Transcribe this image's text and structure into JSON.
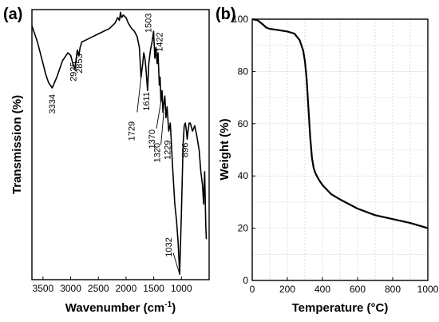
{
  "chart_data": [
    {
      "type": "line",
      "panel_label": "(a)",
      "xlabel": "Wavenumber (cm",
      "xlabel_sup": "-1",
      "xlabel_end": ")",
      "ylabel": "Transmission (%)",
      "xlim": [
        3700,
        500
      ],
      "x_reversed": true,
      "x_ticks": [
        3500,
        3000,
        2500,
        2000,
        1500,
        1000
      ],
      "y_ticks_shown": false,
      "y_scale": "arbitrary transmission, 0 = bottom of frame, 100 = top of frame",
      "series": [
        {
          "x": [
            3700,
            3600,
            3500,
            3450,
            3400,
            3334,
            3250,
            3150,
            3050,
            3000,
            2960,
            2925,
            2900,
            2880,
            2853,
            2830,
            2800,
            2700,
            2600,
            2500,
            2400,
            2300,
            2200,
            2150,
            2120,
            2100,
            2080,
            2050,
            2000,
            1960,
            1900,
            1850,
            1800,
            1760,
            1729,
            1700,
            1680,
            1660,
            1640,
            1611,
            1590,
            1560,
            1530,
            1503,
            1480,
            1460,
            1440,
            1422,
            1400,
            1385,
            1370,
            1350,
            1335,
            1320,
            1300,
            1280,
            1260,
            1229,
            1200,
            1160,
            1120,
            1090,
            1060,
            1032,
            1000,
            970,
            950,
            930,
            910,
            896,
            880,
            860,
            840,
            800,
            760,
            720,
            680,
            650,
            620,
            600,
            580,
            560,
            550
          ],
          "y": [
            94,
            88,
            80,
            76,
            73,
            71,
            75,
            81,
            84,
            83,
            80,
            78,
            82,
            85,
            83,
            86,
            88,
            89,
            90,
            91,
            92,
            93,
            95,
            97,
            96,
            99,
            97,
            98,
            97,
            95,
            93,
            92,
            90,
            86,
            75,
            80,
            84,
            82,
            78,
            70,
            80,
            85,
            88,
            92,
            82,
            86,
            80,
            84,
            72,
            75,
            66,
            70,
            62,
            65,
            68,
            60,
            64,
            55,
            58,
            42,
            28,
            22,
            14,
            2,
            25,
            50,
            57,
            58,
            55,
            52,
            55,
            58,
            58,
            55,
            57,
            53,
            48,
            40,
            35,
            28,
            40,
            20,
            15
          ],
          "annotations": [
            "3334",
            "2925",
            "2853",
            "1729",
            "1611",
            "1503",
            "1422",
            "1370",
            "1320",
            "1229",
            "1032",
            "896"
          ]
        }
      ]
    },
    {
      "type": "line",
      "panel_label": "(b)",
      "xlabel": "Temperature (°C)",
      "ylabel": "Weight (%)",
      "xlim": [
        0,
        1000
      ],
      "ylim": [
        0,
        100
      ],
      "x_ticks": [
        "0",
        "200",
        "400",
        "600",
        "800",
        "1000"
      ],
      "y_ticks": [
        "0",
        "20",
        "40",
        "60",
        "80",
        "100"
      ],
      "grid": true,
      "series": [
        {
          "x": [
            0,
            30,
            60,
            80,
            100,
            150,
            200,
            240,
            270,
            290,
            300,
            310,
            320,
            330,
            340,
            350,
            360,
            380,
            400,
            450,
            500,
            600,
            700,
            800,
            900,
            1000
          ],
          "y": [
            100,
            99.6,
            98,
            96.8,
            96.3,
            95.8,
            95.3,
            94.5,
            92,
            88,
            84,
            77,
            66,
            55,
            47,
            43,
            41,
            38.5,
            36.5,
            33,
            31,
            27.5,
            25,
            23.5,
            22,
            20
          ]
        }
      ]
    }
  ]
}
